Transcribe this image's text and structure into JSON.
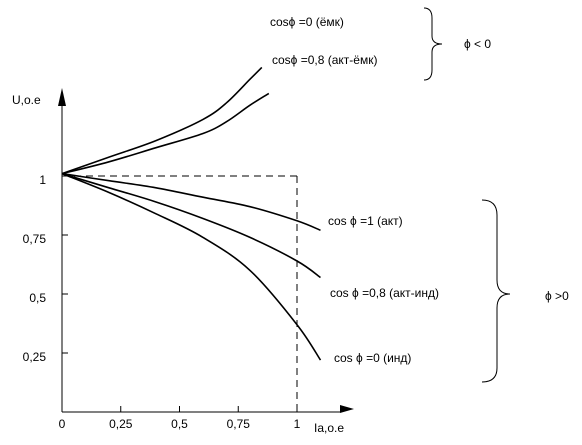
{
  "chart_data": {
    "type": "line",
    "ylabel": "U,о.е",
    "xlabel": "Iа,о.е",
    "xlim": [
      0,
      1.25
    ],
    "ylim": [
      0,
      1.4
    ],
    "x_ticks": [
      0,
      0.25,
      0.5,
      0.75,
      1
    ],
    "x_tick_labels": [
      "0",
      "0,25",
      "0,5",
      "0,75",
      "1"
    ],
    "y_ticks": [
      0.25,
      0.5,
      0.75,
      1
    ],
    "y_tick_labels": [
      "0,25",
      "0,5",
      "0,75",
      "1"
    ],
    "reference_lines": [
      {
        "style": "dashed",
        "points": [
          [
            0,
            1
          ],
          [
            1,
            1
          ]
        ]
      },
      {
        "style": "dashed",
        "points": [
          [
            1,
            1
          ],
          [
            1,
            0
          ]
        ]
      }
    ],
    "series": [
      {
        "name": "cosϕ =0  (ёмк)",
        "x": [
          0,
          0.2,
          0.4,
          0.6,
          0.7,
          0.8,
          0.85
        ],
        "y": [
          1.01,
          1.08,
          1.15,
          1.24,
          1.31,
          1.41,
          1.46
        ]
      },
      {
        "name": "cosϕ =0,8  (акт-ёмк)",
        "x": [
          0,
          0.2,
          0.4,
          0.6,
          0.7,
          0.8,
          0.88
        ],
        "y": [
          1.01,
          1.06,
          1.12,
          1.18,
          1.23,
          1.3,
          1.35
        ]
      },
      {
        "name": "cos ϕ =1 (акт)",
        "x": [
          0,
          0.2,
          0.4,
          0.6,
          0.8,
          1.0,
          1.1
        ],
        "y": [
          1.01,
          0.98,
          0.95,
          0.91,
          0.87,
          0.81,
          0.77
        ]
      },
      {
        "name": "cos ϕ =0,8 (акт-инд)",
        "x": [
          0,
          0.2,
          0.4,
          0.6,
          0.8,
          1.0,
          1.1
        ],
        "y": [
          1.01,
          0.95,
          0.89,
          0.82,
          0.74,
          0.64,
          0.57
        ]
      },
      {
        "name": "cos ϕ =0 (инд)",
        "x": [
          0,
          0.2,
          0.4,
          0.6,
          0.8,
          1.0,
          1.1
        ],
        "y": [
          1.01,
          0.93,
          0.84,
          0.74,
          0.6,
          0.37,
          0.22
        ]
      }
    ],
    "groups": [
      {
        "label": "ϕ < 0",
        "members": [
          "cosϕ =0  (ёмк)",
          "cosϕ =0,8  (акт-ёмк)"
        ]
      },
      {
        "label": "ϕ >0",
        "members": [
          "cos ϕ =1 (акт)",
          "cos ϕ =0,8 (акт-инд)",
          "cos ϕ =0 (инд)"
        ]
      }
    ]
  }
}
